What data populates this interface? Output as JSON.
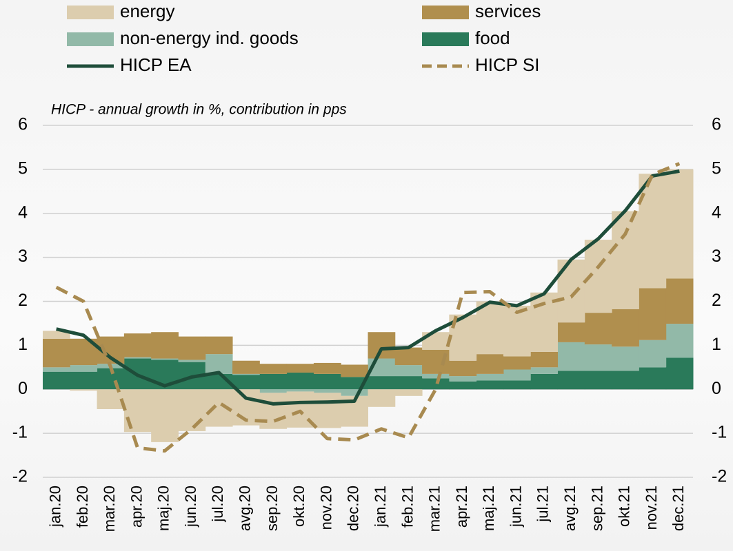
{
  "chart_data": {
    "type": "bar_line",
    "annotation": "HICP - annual growth in %, contribution in pps",
    "categories": [
      "jan.20",
      "feb.20",
      "mar.20",
      "apr.20",
      "maj.20",
      "jun.20",
      "jul.20",
      "avg.20",
      "sep.20",
      "okt.20",
      "nov.20",
      "dec.20",
      "jan.21",
      "feb.21",
      "mar.21",
      "apr.21",
      "maj.21",
      "jun.21",
      "jul.21",
      "avg.21",
      "sep.21",
      "okt.21",
      "nov.21",
      "dec.21"
    ],
    "series": [
      {
        "name": "food",
        "type": "bar",
        "color": "#2a7a5a",
        "values": [
          0.4,
          0.4,
          0.48,
          0.7,
          0.67,
          0.62,
          0.35,
          0.33,
          0.35,
          0.38,
          0.35,
          0.28,
          0.3,
          0.3,
          0.25,
          0.18,
          0.2,
          0.2,
          0.35,
          0.42,
          0.42,
          0.42,
          0.5,
          0.72
        ]
      },
      {
        "name": "non-energy ind. goods",
        "type": "bar",
        "color": "#92b9a8",
        "values": [
          0.1,
          0.15,
          0.1,
          0.03,
          0.03,
          0.05,
          0.45,
          0.02,
          -0.08,
          -0.05,
          -0.08,
          -0.15,
          0.4,
          0.25,
          0.1,
          0.12,
          0.15,
          0.25,
          0.15,
          0.65,
          0.6,
          0.55,
          0.62,
          0.77
        ]
      },
      {
        "name": "services",
        "type": "bar",
        "color": "#b08f4e",
        "values": [
          0.65,
          0.6,
          0.62,
          0.54,
          0.6,
          0.53,
          0.4,
          0.3,
          0.23,
          0.2,
          0.25,
          0.28,
          0.6,
          0.4,
          0.55,
          0.35,
          0.45,
          0.3,
          0.35,
          0.45,
          0.72,
          0.85,
          1.18,
          1.03
        ]
      },
      {
        "name": "energy",
        "type": "bar",
        "color": "#dccdae",
        "values": [
          0.18,
          -0.03,
          -0.45,
          -0.97,
          -1.2,
          -0.95,
          -0.85,
          -0.82,
          -0.82,
          -0.82,
          -0.8,
          -0.7,
          -0.4,
          -0.15,
          0.4,
          1.05,
          1.2,
          1.15,
          1.35,
          1.43,
          1.66,
          2.23,
          2.6,
          2.48
        ]
      },
      {
        "name": "HICP EA",
        "type": "line",
        "color": "#1e4d3a",
        "dash": false,
        "values": [
          1.37,
          1.23,
          0.72,
          0.32,
          0.08,
          0.28,
          0.38,
          -0.2,
          -0.33,
          -0.3,
          -0.29,
          -0.27,
          0.92,
          0.95,
          1.33,
          1.63,
          1.98,
          1.9,
          2.17,
          2.95,
          3.42,
          4.06,
          4.85,
          4.96
        ]
      },
      {
        "name": "HICP SI",
        "type": "line",
        "color": "#a88a50",
        "dash": true,
        "values": [
          2.32,
          2.0,
          0.52,
          -1.33,
          -1.4,
          -0.9,
          -0.3,
          -0.7,
          -0.73,
          -0.5,
          -1.12,
          -1.15,
          -0.9,
          -1.1,
          0.0,
          2.2,
          2.22,
          1.75,
          1.95,
          2.1,
          2.78,
          3.53,
          4.88,
          5.13
        ]
      }
    ],
    "ylim": [
      -2,
      6
    ],
    "yticks": [
      -2,
      -1,
      0,
      1,
      2,
      3,
      4,
      5,
      6
    ],
    "y2lim": [
      -2,
      6
    ],
    "y2ticks": [
      -2,
      -1,
      0,
      1,
      2,
      3,
      4,
      5,
      6
    ],
    "grid": true
  }
}
